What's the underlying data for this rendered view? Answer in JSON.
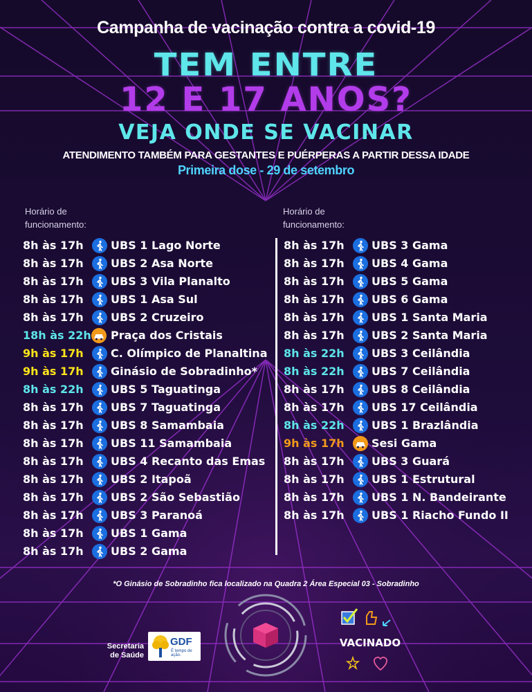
{
  "header": {
    "campaign": "Campanha de vacinação contra a covid-19",
    "line1": "TEM ENTRE",
    "line2": "12 E 17 ANOS?",
    "line3": "VEJA ONDE SE VACINAR",
    "note": "ATENDIMENTO TAMBÉM PARA GESTANTES E PUÉRPERAS A PARTIR DESSA IDADE",
    "dose": "Primeira dose - 29 de setembro"
  },
  "colors": {
    "white": "#ffffff",
    "cyan": "#5ee6ea",
    "yellow": "#ffe51a",
    "orange": "#f29a1a",
    "purple": "#b23ce9",
    "walk_icon": "#1b6fe0",
    "car_icon": "#f29a1a"
  },
  "columns": [
    {
      "hours_label_line1": "Horário de",
      "hours_label_line2": "funcionamento:",
      "rows": [
        {
          "time": "8h às 17h",
          "icon": "walking-person-icon",
          "place": "UBS 1 Lago Norte",
          "time_color": "white"
        },
        {
          "time": "8h às 17h",
          "icon": "walking-person-icon",
          "place": "UBS 2 Asa Norte",
          "time_color": "white"
        },
        {
          "time": "8h às 17h",
          "icon": "walking-person-icon",
          "place": "UBS 3 Vila Planalto",
          "time_color": "white"
        },
        {
          "time": "8h às 17h",
          "icon": "walking-person-icon",
          "place": "UBS 1 Asa Sul",
          "time_color": "white"
        },
        {
          "time": "8h às 17h",
          "icon": "walking-person-icon",
          "place": "UBS 2 Cruzeiro",
          "time_color": "white"
        },
        {
          "time": "18h às 22h",
          "icon": "car-icon",
          "place": "Praça dos Cristais",
          "time_color": "cyan"
        },
        {
          "time": "9h às 17h",
          "icon": "walking-person-icon",
          "place": "C. Olímpico de Planaltina",
          "time_color": "yellow"
        },
        {
          "time": "9h às 17h",
          "icon": "walking-person-icon",
          "place": "Ginásio de Sobradinho*",
          "time_color": "yellow"
        },
        {
          "time": "8h às 22h",
          "icon": "walking-person-icon",
          "place": "UBS 5 Taguatinga",
          "time_color": "cyan"
        },
        {
          "time": "8h às 17h",
          "icon": "walking-person-icon",
          "place": "UBS 7 Taguatinga",
          "time_color": "white"
        },
        {
          "time": "8h às 17h",
          "icon": "walking-person-icon",
          "place": "UBS 8 Samambaia",
          "time_color": "white"
        },
        {
          "time": "8h às 17h",
          "icon": "walking-person-icon",
          "place": "UBS 11 Samambaia",
          "time_color": "white"
        },
        {
          "time": "8h às 17h",
          "icon": "walking-person-icon",
          "place": "UBS 4 Recanto das Emas",
          "time_color": "white"
        },
        {
          "time": "8h às 17h",
          "icon": "walking-person-icon",
          "place": "UBS 2 Itapoã",
          "time_color": "white"
        },
        {
          "time": "8h às 17h",
          "icon": "walking-person-icon",
          "place": "UBS 2 São Sebastião",
          "time_color": "white"
        },
        {
          "time": "8h às 17h",
          "icon": "walking-person-icon",
          "place": "UBS 3 Paranoá",
          "time_color": "white"
        },
        {
          "time": "8h às 17h",
          "icon": "walking-person-icon",
          "place": "UBS 1 Gama",
          "time_color": "white"
        },
        {
          "time": "8h às 17h",
          "icon": "walking-person-icon",
          "place": "UBS 2 Gama",
          "time_color": "white"
        }
      ]
    },
    {
      "hours_label_line1": "Horário de",
      "hours_label_line2": "funcionamento:",
      "rows": [
        {
          "time": "8h às 17h",
          "icon": "walking-person-icon",
          "place": "UBS 3 Gama",
          "time_color": "white"
        },
        {
          "time": "8h às 17h",
          "icon": "walking-person-icon",
          "place": "UBS 4 Gama",
          "time_color": "white"
        },
        {
          "time": "8h às 17h",
          "icon": "walking-person-icon",
          "place": "UBS 5 Gama",
          "time_color": "white"
        },
        {
          "time": "8h às 17h",
          "icon": "walking-person-icon",
          "place": "UBS 6 Gama",
          "time_color": "white"
        },
        {
          "time": "8h às 17h",
          "icon": "walking-person-icon",
          "place": "UBS 1 Santa Maria",
          "time_color": "white"
        },
        {
          "time": "8h às 17h",
          "icon": "walking-person-icon",
          "place": "UBS 2 Santa Maria",
          "time_color": "white"
        },
        {
          "time": "8h às 22h",
          "icon": "walking-person-icon",
          "place": "UBS 3 Ceilândia",
          "time_color": "cyan"
        },
        {
          "time": "8h às 22h",
          "icon": "walking-person-icon",
          "place": "UBS 7 Ceilândia",
          "time_color": "cyan"
        },
        {
          "time": "8h às 17h",
          "icon": "walking-person-icon",
          "place": "UBS 8 Ceilândia",
          "time_color": "white"
        },
        {
          "time": "8h às 17h",
          "icon": "walking-person-icon",
          "place": "UBS 17 Ceilândia",
          "time_color": "white"
        },
        {
          "time": "8h às 22h",
          "icon": "walking-person-icon",
          "place": "UBS 1 Brazlândia",
          "time_color": "cyan"
        },
        {
          "time": "9h às 17h",
          "icon": "car-icon",
          "place": "Sesi Gama",
          "time_color": "orange"
        },
        {
          "time": "8h às 17h",
          "icon": "walking-person-icon",
          "place": "UBS 3 Guará",
          "time_color": "white"
        },
        {
          "time": "8h às 17h",
          "icon": "walking-person-icon",
          "place": "UBS 1 Estrutural",
          "time_color": "white"
        },
        {
          "time": "8h às 17h",
          "icon": "walking-person-icon",
          "place": "UBS 1 N. Bandeirante",
          "time_color": "white"
        },
        {
          "time": "8h às 17h",
          "icon": "walking-person-icon",
          "place": "UBS 1 Riacho Fundo II",
          "time_color": "white"
        }
      ]
    }
  ],
  "footnote": "*O Ginásio de Sobradinho fica localizado na Quadra 2 Área Especial 03 - Sobradinho",
  "footer": {
    "secretaria": "Secretaria de Saúde",
    "gdf": "GDF",
    "gdf_tag": "É tempo de ação.",
    "vacinado": "VACINADO"
  }
}
